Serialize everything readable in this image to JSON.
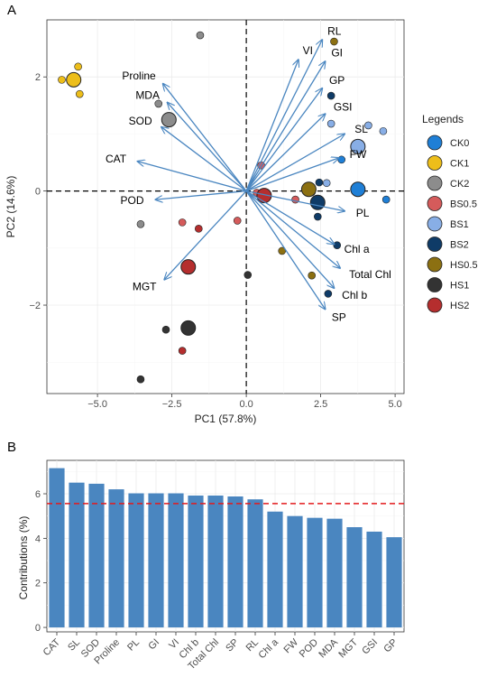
{
  "chart_data": [
    {
      "type": "scatter",
      "panel_label": "A",
      "xlabel": "PC1 (57.8%)",
      "ylabel": "PC2 (14.6%)",
      "xlim": [
        -6.7,
        5.3
      ],
      "ylim": [
        -3.55,
        3.0
      ],
      "xticks": [
        -5,
        -2.5,
        0,
        2.5,
        5
      ],
      "xtick_labels": [
        "−5.0",
        "−2.5",
        "0.0",
        "2.5",
        "5.0"
      ],
      "yticks": [
        -2,
        0,
        2
      ],
      "ytick_labels": [
        "−2",
        "0",
        "2"
      ],
      "reference_lines": {
        "x": 0,
        "y": 0,
        "style": "dashed"
      },
      "grid": true,
      "legend": {
        "title": "Legends",
        "position": "right",
        "entries": [
          {
            "name": "CK0",
            "color": "#1F7FD6"
          },
          {
            "name": "CK1",
            "color": "#EDBE1A"
          },
          {
            "name": "CK2",
            "color": "#8C8C8C"
          },
          {
            "name": "BS0.5",
            "color": "#D55B5B"
          },
          {
            "name": "BS1",
            "color": "#88AEE6"
          },
          {
            "name": "BS2",
            "color": "#0F3B67"
          },
          {
            "name": "HS0.5",
            "color": "#8C7012"
          },
          {
            "name": "HS1",
            "color": "#333333"
          },
          {
            "name": "HS2",
            "color": "#B52E2E"
          }
        ]
      },
      "points": [
        {
          "group": "CK1",
          "x": -5.65,
          "y": 2.18
        },
        {
          "group": "CK1",
          "x": -6.2,
          "y": 1.95
        },
        {
          "group": "CK1",
          "x": -5.6,
          "y": 1.7
        },
        {
          "group": "CK2",
          "x": -1.55,
          "y": 2.73
        },
        {
          "group": "CK2",
          "x": -2.95,
          "y": 1.53
        },
        {
          "group": "CK2",
          "x": -3.55,
          "y": -0.58
        },
        {
          "group": "BS0.5",
          "x": 0.5,
          "y": 0.45
        },
        {
          "group": "BS0.5",
          "x": 0.35,
          "y": -0.03
        },
        {
          "group": "BS0.5",
          "x": -2.15,
          "y": -0.55
        },
        {
          "group": "BS0.5",
          "x": 1.65,
          "y": -0.15
        },
        {
          "group": "BS0.5",
          "x": -0.3,
          "y": -0.52
        },
        {
          "group": "HS2",
          "x": -1.6,
          "y": -0.66
        },
        {
          "group": "HS2",
          "x": -2.15,
          "y": -2.8
        },
        {
          "group": "BS1",
          "x": 2.85,
          "y": 1.18
        },
        {
          "group": "BS1",
          "x": 4.1,
          "y": 1.15
        },
        {
          "group": "BS1",
          "x": 4.6,
          "y": 1.05
        },
        {
          "group": "BS1",
          "x": 2.7,
          "y": 0.14
        },
        {
          "group": "BS1",
          "x": 2.2,
          "y": -0.02
        },
        {
          "group": "BS2",
          "x": 2.85,
          "y": 1.67
        },
        {
          "group": "BS2",
          "x": 2.45,
          "y": 0.15
        },
        {
          "group": "BS2",
          "x": 2.4,
          "y": -0.45
        },
        {
          "group": "BS2",
          "x": 2.75,
          "y": -1.8
        },
        {
          "group": "BS2",
          "x": 3.05,
          "y": -0.95
        },
        {
          "group": "CK0",
          "x": 3.2,
          "y": 0.55
        },
        {
          "group": "CK0",
          "x": 4.7,
          "y": -0.15
        },
        {
          "group": "HS0.5",
          "x": 2.95,
          "y": 2.62
        },
        {
          "group": "HS0.5",
          "x": 1.2,
          "y": -1.05
        },
        {
          "group": "HS0.5",
          "x": 2.2,
          "y": -1.48
        },
        {
          "group": "HS1",
          "x": -2.7,
          "y": -2.43
        },
        {
          "group": "HS1",
          "x": -3.55,
          "y": -3.3
        },
        {
          "group": "HS1",
          "x": 0.05,
          "y": -1.47
        },
        {
          "group": "HS2",
          "x": 0.6,
          "y": -0.08,
          "centroid": true
        },
        {
          "group": "CK1",
          "x": -5.8,
          "y": 1.95,
          "centroid": true
        },
        {
          "group": "CK2",
          "x": -2.6,
          "y": 1.25,
          "centroid": true
        },
        {
          "group": "HS2",
          "x": -1.95,
          "y": -1.33,
          "centroid": true
        },
        {
          "group": "HS1",
          "x": -1.95,
          "y": -2.4,
          "centroid": true
        },
        {
          "group": "HS0.5",
          "x": 2.1,
          "y": 0.03,
          "centroid": true
        },
        {
          "group": "BS2",
          "x": 2.4,
          "y": -0.2,
          "centroid": true
        },
        {
          "group": "BS1",
          "x": 3.75,
          "y": 0.78,
          "centroid": true
        },
        {
          "group": "CK0",
          "x": 3.75,
          "y": 0.03,
          "centroid": true
        }
      ],
      "loadings": [
        {
          "name": "RL",
          "x": 2.55,
          "y": 2.65
        },
        {
          "name": "VI",
          "x": 1.75,
          "y": 2.3
        },
        {
          "name": "GI",
          "x": 2.65,
          "y": 2.27
        },
        {
          "name": "GP",
          "x": 2.55,
          "y": 1.8
        },
        {
          "name": "GSI",
          "x": 2.65,
          "y": 1.35
        },
        {
          "name": "SL",
          "x": 3.3,
          "y": 1.0
        },
        {
          "name": "FW",
          "x": 3.1,
          "y": 0.58
        },
        {
          "name": "PL",
          "x": 3.3,
          "y": -0.35
        },
        {
          "name": "Chl a",
          "x": 2.95,
          "y": -0.93
        },
        {
          "name": "Total Chl",
          "x": 3.15,
          "y": -1.35
        },
        {
          "name": "Chl b",
          "x": 2.95,
          "y": -1.7
        },
        {
          "name": "SP",
          "x": 2.65,
          "y": -2.07
        },
        {
          "name": "Proline",
          "x": -2.8,
          "y": 1.88
        },
        {
          "name": "MDA",
          "x": -2.65,
          "y": 1.55
        },
        {
          "name": "SOD",
          "x": -2.85,
          "y": 1.12
        },
        {
          "name": "CAT",
          "x": -3.65,
          "y": 0.52
        },
        {
          "name": "POD",
          "x": -3.05,
          "y": -0.15
        },
        {
          "name": "MGT",
          "x": -2.75,
          "y": -1.55
        }
      ]
    },
    {
      "type": "bar",
      "panel_label": "B",
      "categories": [
        "CAT",
        "SL",
        "SOD",
        "Proline",
        "PL",
        "GI",
        "VI",
        "Chl b",
        "Total Chl",
        "SP",
        "RL",
        "Chl a",
        "FW",
        "POD",
        "MDA",
        "MGT",
        "GSI",
        "GP"
      ],
      "values": [
        7.15,
        6.5,
        6.45,
        6.2,
        6.02,
        6.02,
        6.02,
        5.92,
        5.92,
        5.88,
        5.75,
        5.2,
        5.0,
        4.92,
        4.88,
        4.5,
        4.3,
        4.05
      ],
      "xlabel": "",
      "ylabel": "Contributions (%)",
      "ylim": [
        -0.2,
        7.5
      ],
      "yticks": [
        0,
        2,
        4,
        6
      ],
      "bar_color": "#4A86C0",
      "reference_line": {
        "y": 5.56,
        "color": "#E31A1C",
        "style": "dashed"
      },
      "grid": true
    }
  ]
}
